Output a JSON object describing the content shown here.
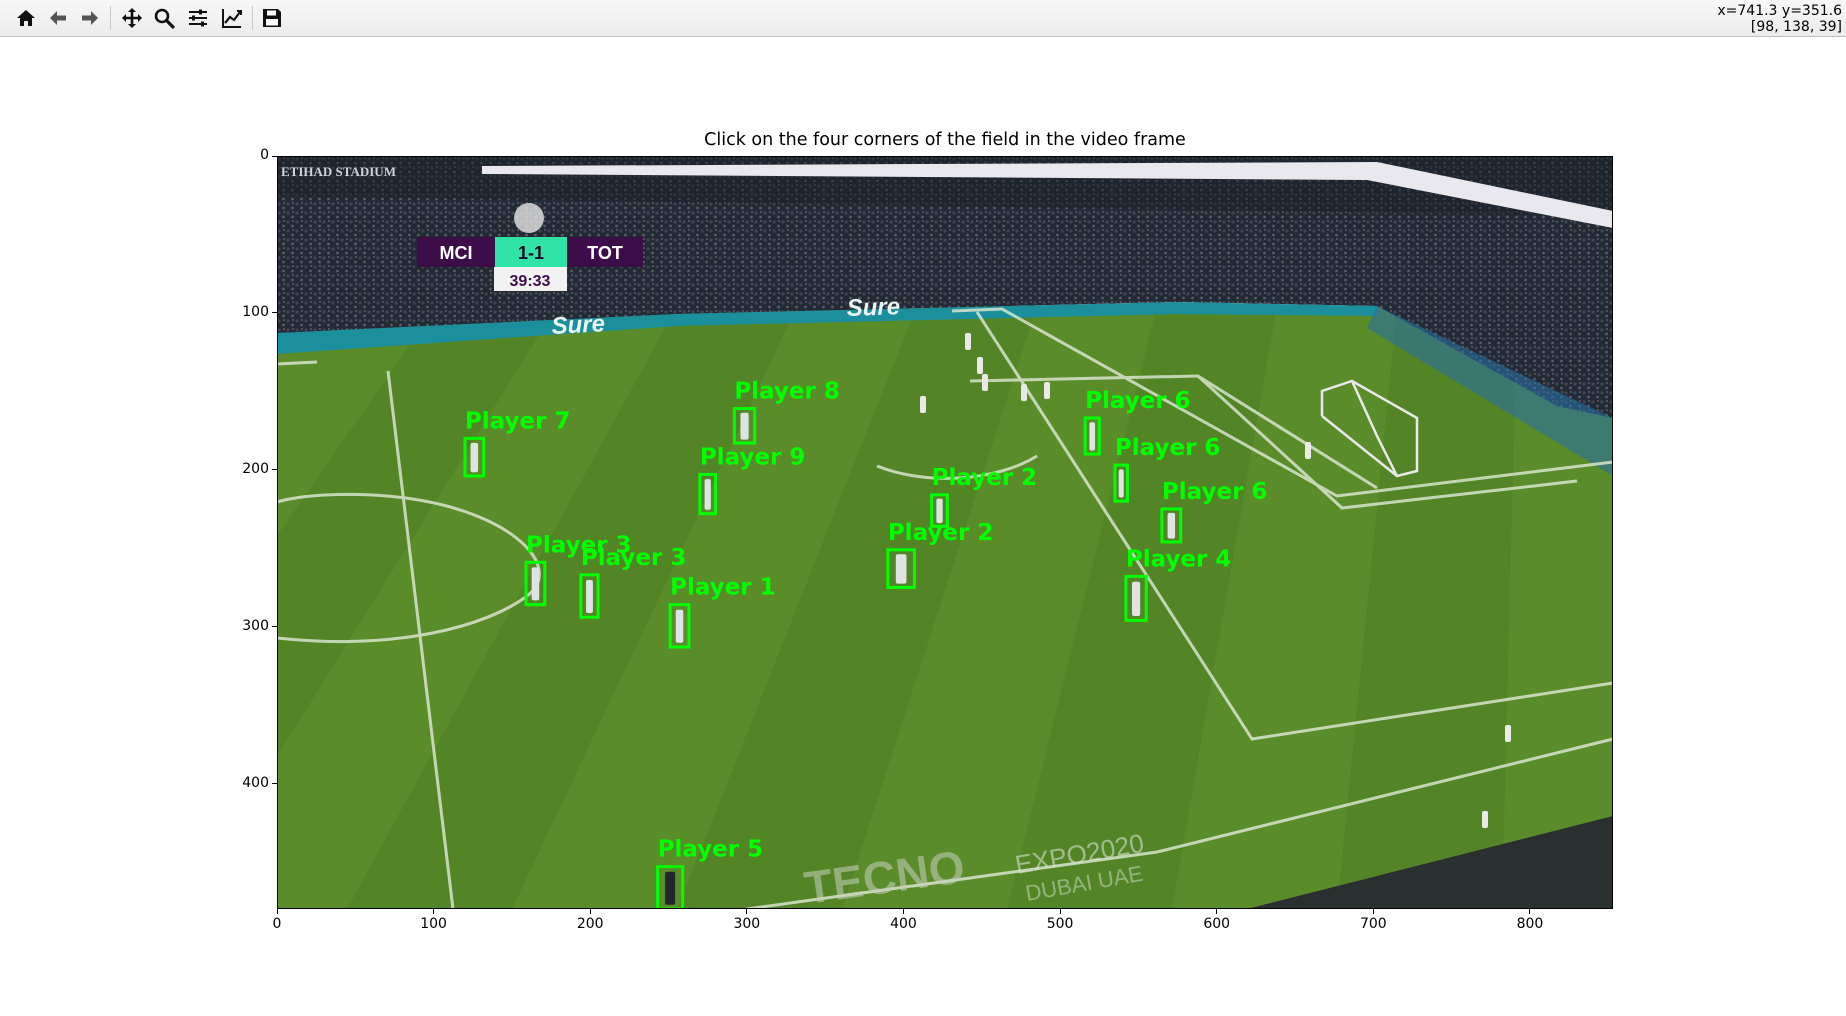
{
  "window": {
    "title": "Click on the four corners of the field in the video frame",
    "coords_line1": "x=741.3 y=351.6",
    "coords_line2": "[98, 138, 39]"
  },
  "toolbar": {
    "buttons": [
      {
        "name": "home-button",
        "icon": "home-icon"
      },
      {
        "name": "back-button",
        "icon": "arrow-left-icon"
      },
      {
        "name": "forward-button",
        "icon": "arrow-right-icon"
      },
      {
        "name": "pan-button",
        "icon": "move-icon"
      },
      {
        "name": "zoom-button",
        "icon": "magnifier-icon"
      },
      {
        "name": "configure-subplots-button",
        "icon": "sliders-icon"
      },
      {
        "name": "edit-axis-button",
        "icon": "line-chart-icon"
      },
      {
        "name": "save-button",
        "icon": "floppy-disk-icon"
      }
    ]
  },
  "axes": {
    "x_ticks": [
      "0",
      "100",
      "200",
      "300",
      "400",
      "500",
      "600",
      "700",
      "800"
    ],
    "y_ticks": [
      "0",
      "100",
      "200",
      "300",
      "400"
    ],
    "x_range": [
      0,
      853
    ],
    "y_range": [
      0,
      480
    ]
  },
  "scoreboard": {
    "home": "MCI",
    "score": "1-1",
    "away": "TOT",
    "time": "39:33"
  },
  "stadium_text": "ETIHAD STADIUM",
  "ad_texts": [
    "Sure",
    "Sure",
    "EXPO2020",
    "DUBAI UAE",
    "TECNO"
  ],
  "detections": [
    {
      "label": "Player 7",
      "x": 120,
      "y": 180,
      "w": 12,
      "h": 24
    },
    {
      "label": "Player 8",
      "x": 292,
      "y": 161,
      "w": 13,
      "h": 22
    },
    {
      "label": "Player 9",
      "x": 270,
      "y": 203,
      "w": 10,
      "h": 25
    },
    {
      "label": "Player 6",
      "x": 516,
      "y": 167,
      "w": 9,
      "h": 23
    },
    {
      "label": "Player 6",
      "x": 535,
      "y": 197,
      "w": 8,
      "h": 23
    },
    {
      "label": "Player 6",
      "x": 565,
      "y": 225,
      "w": 12,
      "h": 21
    },
    {
      "label": "Player 2",
      "x": 418,
      "y": 216,
      "w": 10,
      "h": 20
    },
    {
      "label": "Player 2",
      "x": 390,
      "y": 251,
      "w": 17,
      "h": 24
    },
    {
      "label": "Player 3",
      "x": 159,
      "y": 259,
      "w": 12,
      "h": 27
    },
    {
      "label": "Player 3",
      "x": 194,
      "y": 267,
      "w": 11,
      "h": 27
    },
    {
      "label": "Player 1",
      "x": 251,
      "y": 286,
      "w": 12,
      "h": 27
    },
    {
      "label": "Player 4",
      "x": 542,
      "y": 268,
      "w": 13,
      "h": 28
    },
    {
      "label": "Player 5",
      "x": 243,
      "y": 453,
      "w": 16,
      "h": 27
    }
  ],
  "colors": {
    "detection": "#00ff00",
    "grass_light": "#5d8f2a",
    "grass_dark": "#4f7f22",
    "toolbar_bg": "#ececec"
  }
}
